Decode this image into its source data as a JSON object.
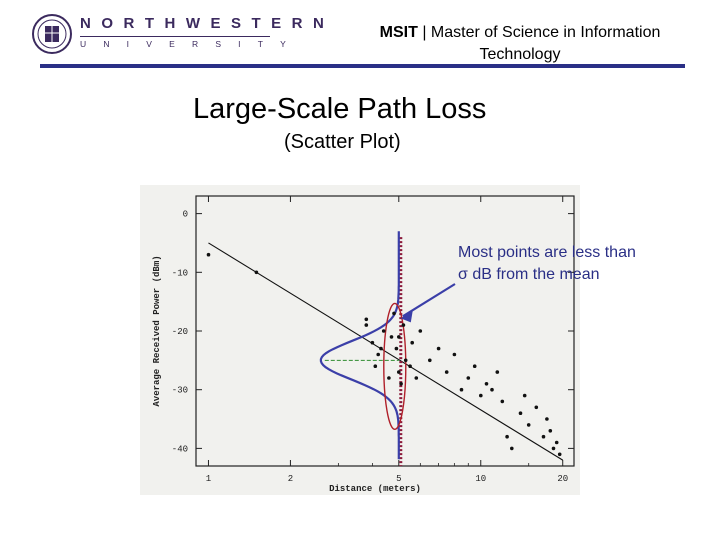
{
  "header": {
    "logo": {
      "line1": "NORTHWESTERN",
      "line2": "UNIVERSITY"
    },
    "program_abbr": "MSIT",
    "separator": "|",
    "program_name_line1": "Master of Science in Information",
    "program_name_line2": "Technology",
    "colors": {
      "rule": "#2a2f86",
      "logo": "#3b2a5e"
    }
  },
  "slide": {
    "title": "Large-Scale Path Loss",
    "subtitle": "(Scatter Plot)"
  },
  "annotation": {
    "line1": "Most points are less than",
    "sigma_symbol": "σ",
    "line2_rest": " dB from the mean",
    "color": "#2a2f86"
  },
  "chart_data": {
    "type": "scatter",
    "title": "",
    "xlabel": "Distance (meters)",
    "ylabel": "Average Received Power (dBm)",
    "x_scale": "log",
    "xlim": [
      0.9,
      22
    ],
    "ylim": [
      -43,
      3
    ],
    "x_ticks": [
      1,
      2,
      5,
      10,
      20
    ],
    "x_tick_labels": [
      "1",
      "2",
      "5",
      "10",
      "20"
    ],
    "y_ticks": [
      0,
      -10,
      -20,
      -30,
      -40
    ],
    "y_tick_labels": [
      "0",
      "-10",
      "-20",
      "-30",
      "-40"
    ],
    "grid": false,
    "points": [
      {
        "x": 1.0,
        "y": -7
      },
      {
        "x": 1.5,
        "y": -10
      },
      {
        "x": 3.8,
        "y": -18
      },
      {
        "x": 3.8,
        "y": -19
      },
      {
        "x": 4.0,
        "y": -22
      },
      {
        "x": 4.1,
        "y": -26
      },
      {
        "x": 4.2,
        "y": -24
      },
      {
        "x": 4.3,
        "y": -23
      },
      {
        "x": 4.4,
        "y": -20
      },
      {
        "x": 4.6,
        "y": -28
      },
      {
        "x": 4.7,
        "y": -21
      },
      {
        "x": 4.8,
        "y": -17
      },
      {
        "x": 4.9,
        "y": -23
      },
      {
        "x": 5.0,
        "y": -21
      },
      {
        "x": 5.0,
        "y": -27
      },
      {
        "x": 5.1,
        "y": -29
      },
      {
        "x": 5.2,
        "y": -19
      },
      {
        "x": 5.3,
        "y": -25
      },
      {
        "x": 5.5,
        "y": -26
      },
      {
        "x": 5.6,
        "y": -22
      },
      {
        "x": 5.8,
        "y": -28
      },
      {
        "x": 6.0,
        "y": -20
      },
      {
        "x": 6.5,
        "y": -25
      },
      {
        "x": 7.0,
        "y": -23
      },
      {
        "x": 7.5,
        "y": -27
      },
      {
        "x": 8.0,
        "y": -24
      },
      {
        "x": 8.5,
        "y": -30
      },
      {
        "x": 9.0,
        "y": -28
      },
      {
        "x": 9.5,
        "y": -26
      },
      {
        "x": 10.0,
        "y": -31
      },
      {
        "x": 10.5,
        "y": -29
      },
      {
        "x": 11.0,
        "y": -30
      },
      {
        "x": 11.5,
        "y": -27
      },
      {
        "x": 12.0,
        "y": -32
      },
      {
        "x": 12.5,
        "y": -38
      },
      {
        "x": 13.0,
        "y": -40
      },
      {
        "x": 14.0,
        "y": -34
      },
      {
        "x": 14.5,
        "y": -31
      },
      {
        "x": 15.0,
        "y": -36
      },
      {
        "x": 16.0,
        "y": -33
      },
      {
        "x": 17.0,
        "y": -38
      },
      {
        "x": 17.5,
        "y": -35
      },
      {
        "x": 18.0,
        "y": -37
      },
      {
        "x": 18.5,
        "y": -40
      },
      {
        "x": 19.0,
        "y": -39
      },
      {
        "x": 19.5,
        "y": -41
      }
    ],
    "fit_line": [
      [
        1,
        -5
      ],
      [
        20,
        -42
      ]
    ],
    "mean_at_x": 5,
    "mean_y": -25,
    "spread_band": [
      -17,
      -33
    ]
  }
}
